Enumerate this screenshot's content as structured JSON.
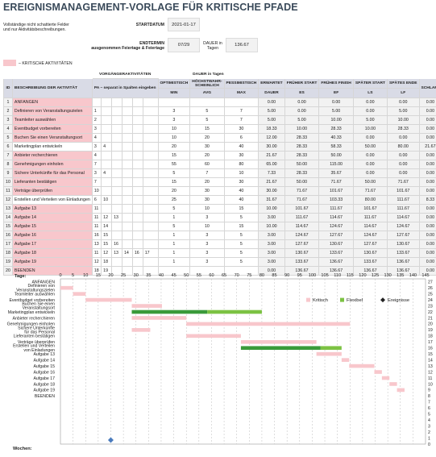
{
  "title": "EREIGNISMANAGEMENT-VORLAGE FÜR KRITISCHE PFADE",
  "instructions": [
    "Vollständige nicht schattierte Felder",
    "und nur Aktivitätsbeschreibungen."
  ],
  "startdatum": {
    "label": "STARTDATUM",
    "value": "2021-01-17"
  },
  "endtermin": {
    "label_line1": "ENDTERMIN",
    "label_line2": "ausgenommen Feiertage & Feiertage",
    "value": "07/29"
  },
  "dauer": {
    "label_line1": "DAUER in",
    "label_line2": "Tagen",
    "value": "136.67"
  },
  "legend_label": "– KRITISCHE AKTIVITÄTEN",
  "table": {
    "group_headers": {
      "predecessors": "VORGÄNGERAKTIVITÄTEN",
      "duration": "DAUER in Tagen"
    },
    "headers": {
      "id": "ID",
      "desc": "BESCHREIBUNG DER AKTIVITÄT",
      "pa": "PA – separat in Spalten eingeben",
      "min": "OPTIMISTISCH",
      "avg": "HÖCHSTWAHR-SCHEINLICH",
      "max": "PESSIMISTISCH",
      "erwartet": "ERWARTET",
      "es": "FRÜHER START",
      "ef": "FRÜHES FINISH",
      "ls": "SPÄTER START",
      "lf": "SPÄTES ENDE",
      "schlaff": "SCHLAFF"
    },
    "subheaders": {
      "min": "MIN",
      "avg": "AVG",
      "max": "MAX",
      "dauer": "DAUER",
      "es": "ES",
      "ef": "EF",
      "ls": "LS",
      "lf": "LF"
    },
    "rows": [
      {
        "id": "1",
        "desc": "ANFANGEN",
        "crit": true,
        "pa": [
          "",
          "",
          "",
          "",
          "",
          ""
        ],
        "min": "",
        "avg": "",
        "max": "",
        "dauer": "0.00",
        "es": "0.00",
        "ef": "0.00",
        "ls": "0.00",
        "lf": "0.00",
        "slack": "0.00"
      },
      {
        "id": "2",
        "desc": "Definieren von Veranstaltungszielen",
        "crit": true,
        "pa": [
          "1",
          "",
          "",
          "",
          "",
          ""
        ],
        "min": "3",
        "avg": "5",
        "max": "7",
        "dauer": "5.00",
        "es": "0.00",
        "ef": "5.00",
        "ls": "0.00",
        "lf": "5.00",
        "slack": "0.00"
      },
      {
        "id": "3",
        "desc": "Teamleiter auswählen",
        "crit": true,
        "pa": [
          "2",
          "",
          "",
          "",
          "",
          ""
        ],
        "min": "3",
        "avg": "5",
        "max": "7",
        "dauer": "5.00",
        "es": "5.00",
        "ef": "10.00",
        "ls": "5.00",
        "lf": "10.00",
        "slack": "0.00"
      },
      {
        "id": "4",
        "desc": "Eventbudget vorbereiten",
        "crit": true,
        "pa": [
          "3",
          "",
          "",
          "",
          "",
          ""
        ],
        "min": "10",
        "avg": "15",
        "max": "30",
        "dauer": "18.33",
        "es": "10.00",
        "ef": "28.33",
        "ls": "10.00",
        "lf": "28.33",
        "slack": "0.00"
      },
      {
        "id": "5",
        "desc": "Buchen Sie einen Veranstaltungsort",
        "crit": true,
        "pa": [
          "4",
          "",
          "",
          "",
          "",
          ""
        ],
        "min": "10",
        "avg": "20",
        "max": "6",
        "dauer": "12.00",
        "es": "28.33",
        "ef": "40.33",
        "ls": "0.00",
        "lf": "0.00",
        "slack": "0.00"
      },
      {
        "id": "6",
        "desc": "Marketingplan entwickeln",
        "crit": false,
        "pa": [
          "3",
          "4",
          "",
          "",
          "",
          ""
        ],
        "min": "20",
        "avg": "30",
        "max": "40",
        "dauer": "30.00",
        "es": "28.33",
        "ef": "58.33",
        "ls": "50.00",
        "lf": "80.00",
        "slack": "21.67"
      },
      {
        "id": "7",
        "desc": "Anbieter recherchieren",
        "crit": true,
        "pa": [
          "4",
          "",
          "",
          "",
          "",
          ""
        ],
        "min": "15",
        "avg": "20",
        "max": "30",
        "dauer": "21.67",
        "es": "28.33",
        "ef": "50.00",
        "ls": "0.00",
        "lf": "0.00",
        "slack": "0.00"
      },
      {
        "id": "8",
        "desc": "Genehmigungen einholen",
        "crit": true,
        "pa": [
          "7",
          "",
          "",
          "",
          "",
          ""
        ],
        "min": "55",
        "avg": "60",
        "max": "80",
        "dauer": "65.00",
        "es": "50.00",
        "ef": "115.00",
        "ls": "0.00",
        "lf": "0.00",
        "slack": "0.00"
      },
      {
        "id": "9",
        "desc": "Sichere Unterkünfte für das Personal",
        "crit": true,
        "pa": [
          "3",
          "4",
          "",
          "",
          "",
          ""
        ],
        "min": "5",
        "avg": "7",
        "max": "10",
        "dauer": "7.33",
        "es": "28.33",
        "ef": "35.67",
        "ls": "0.00",
        "lf": "0.00",
        "slack": "0.00"
      },
      {
        "id": "10",
        "desc": "Lieferanten bestätigen",
        "crit": true,
        "pa": [
          "7",
          "",
          "",
          "",
          "",
          ""
        ],
        "min": "15",
        "avg": "20",
        "max": "30",
        "dauer": "21.67",
        "es": "50.00",
        "ef": "71.67",
        "ls": "50.00",
        "lf": "71.67",
        "slack": "0.00"
      },
      {
        "id": "11",
        "desc": "Verträge überprüfen",
        "crit": true,
        "pa": [
          "10",
          "",
          "",
          "",
          "",
          ""
        ],
        "min": "20",
        "avg": "30",
        "max": "40",
        "dauer": "30.00",
        "es": "71.67",
        "ef": "101.67",
        "ls": "71.67",
        "lf": "101.67",
        "slack": "0.00"
      },
      {
        "id": "12",
        "desc": "Erstellen und Verteilen von Einladungen",
        "crit": false,
        "pa": [
          "6",
          "10",
          "",
          "",
          "",
          ""
        ],
        "min": "25",
        "avg": "30",
        "max": "40",
        "dauer": "31.67",
        "es": "71.67",
        "ef": "103.33",
        "ls": "80.00",
        "lf": "111.67",
        "slack": "8.33"
      },
      {
        "id": "13",
        "desc": "Aufgabe 13",
        "crit": true,
        "pa": [
          "11",
          "",
          "",
          "",
          "",
          ""
        ],
        "min": "5",
        "avg": "10",
        "max": "15",
        "dauer": "10.00",
        "es": "101.67",
        "ef": "111.67",
        "ls": "101.67",
        "lf": "111.67",
        "slack": "0.00"
      },
      {
        "id": "14",
        "desc": "Aufgabe 14",
        "crit": true,
        "pa": [
          "11",
          "12",
          "13",
          "",
          "",
          ""
        ],
        "min": "1",
        "avg": "3",
        "max": "5",
        "dauer": "3.00",
        "es": "111.67",
        "ef": "114.67",
        "ls": "111.67",
        "lf": "114.67",
        "slack": "0.00"
      },
      {
        "id": "15",
        "desc": "Aufgabe 15",
        "crit": true,
        "pa": [
          "11",
          "14",
          "",
          "",
          "",
          ""
        ],
        "min": "5",
        "avg": "10",
        "max": "15",
        "dauer": "10.00",
        "es": "114.67",
        "ef": "124.67",
        "ls": "114.67",
        "lf": "124.67",
        "slack": "0.00"
      },
      {
        "id": "16",
        "desc": "Aufgabe 16",
        "crit": true,
        "pa": [
          "16",
          "15",
          "",
          "",
          "",
          ""
        ],
        "min": "1",
        "avg": "3",
        "max": "5",
        "dauer": "3.00",
        "es": "124.67",
        "ef": "127.67",
        "ls": "124.67",
        "lf": "127.67",
        "slack": "0.00"
      },
      {
        "id": "17",
        "desc": "Aufgabe 17",
        "crit": true,
        "pa": [
          "13",
          "15",
          "16",
          "",
          "",
          ""
        ],
        "min": "1",
        "avg": "3",
        "max": "5",
        "dauer": "3.00",
        "es": "127.67",
        "ef": "130.67",
        "ls": "127.67",
        "lf": "130.67",
        "slack": "0.00"
      },
      {
        "id": "18",
        "desc": "Aufgabe 18",
        "crit": true,
        "pa": [
          "11",
          "12",
          "13",
          "14",
          "16",
          "17"
        ],
        "min": "1",
        "avg": "3",
        "max": "5",
        "dauer": "3.00",
        "es": "130.67",
        "ef": "133.67",
        "ls": "130.67",
        "lf": "133.67",
        "slack": "0.00"
      },
      {
        "id": "19",
        "desc": "Aufgabe 19",
        "crit": true,
        "pa": [
          "12",
          "18",
          "",
          "",
          "",
          ""
        ],
        "min": "1",
        "avg": "3",
        "max": "5",
        "dauer": "3.00",
        "es": "133.67",
        "ef": "136.67",
        "ls": "133.67",
        "lf": "136.67",
        "slack": "0.00"
      },
      {
        "id": "20",
        "desc": "BEENDEN",
        "crit": true,
        "pa": [
          "18",
          "19",
          "",
          "",
          "",
          ""
        ],
        "min": "",
        "avg": "",
        "max": "",
        "dauer": "0.00",
        "es": "136.67",
        "ef": "136.67",
        "ls": "136.67",
        "lf": "136.67",
        "slack": "0.00"
      }
    ]
  },
  "gantt": {
    "tage_label": "Tage:",
    "wochen_label": "Wochen:",
    "x_ticks": [
      "0",
      "5",
      "10",
      "15",
      "20",
      "25",
      "30",
      "35",
      "40",
      "45",
      "50",
      "55",
      "60",
      "65",
      "70",
      "75",
      "80",
      "85",
      "90",
      "95",
      "100",
      "105",
      "110",
      "115",
      "120",
      "125",
      "130",
      "135",
      "140",
      "145"
    ],
    "x_max": 145,
    "y_ticks_right": [
      "27",
      "26",
      "25",
      "24",
      "23",
      "22",
      "21",
      "20",
      "19",
      "18",
      "17",
      "16",
      "15",
      "14",
      "13",
      "12",
      "11",
      "10",
      "9",
      "8",
      "7",
      "6",
      "5",
      "4",
      "3",
      "2",
      "1",
      "0"
    ],
    "legend": {
      "critical": "Kritisch",
      "flexible": "Flexibel",
      "events": "Ereignisse"
    },
    "colors": {
      "critical": "#f8c7cc",
      "flexible": "#7cc243",
      "flexible_dark": "#3a9a3a",
      "event": "#222222",
      "week_marker": "#4a7bbd"
    },
    "labels": [
      "ANFANGEN",
      "Definieren von Veranstaltungszielen",
      "Teamleiter auswählen",
      "Eventbudget vorbereiten",
      "Buchen Sie einen Veranstaltungsort",
      "Marketingplan entwickeln",
      "Anbieter recherchieren",
      "Genehmigungen einholen",
      "Sichere Unterkünfte für das Personal",
      "Lieferanten bestätigen",
      "Verträge überprüfen",
      "Erstellen und Verteilen von Einladungen",
      "Aufgabe 13",
      "Aufgabe 14",
      "Aufgabe 15",
      "Aufgabe 16",
      "Aufgabe 17",
      "Aufgabe 18",
      "Aufgabe 19",
      "BEENDEN"
    ],
    "week_marker_day": 20
  }
}
